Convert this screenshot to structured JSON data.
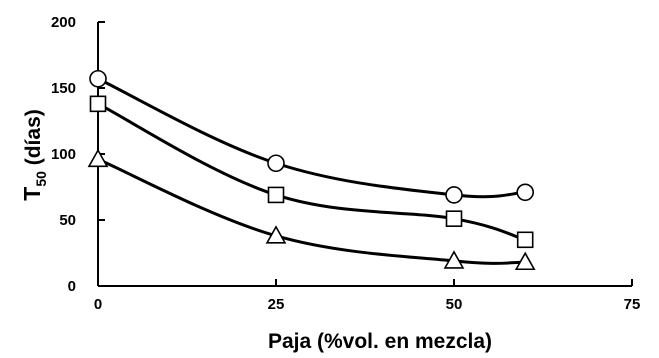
{
  "chart_data": {
    "type": "line",
    "xlabel": "Paja (%vol. en mezcla)",
    "ylabel_main": "T",
    "ylabel_sub": "50",
    "ylabel_rest": " (días)",
    "xlim": [
      0,
      75
    ],
    "ylim": [
      0,
      200
    ],
    "xticks": [
      0,
      25,
      50,
      75
    ],
    "yticks": [
      0,
      50,
      100,
      150,
      200
    ],
    "grid": false,
    "legend": "none",
    "series": [
      {
        "marker": "circle",
        "x": [
          0,
          25,
          50,
          60
        ],
        "y": [
          157,
          93,
          69,
          71
        ]
      },
      {
        "marker": "square",
        "x": [
          0,
          25,
          50,
          60
        ],
        "y": [
          138,
          69,
          51,
          35
        ]
      },
      {
        "marker": "triangle",
        "x": [
          0,
          25,
          50,
          60
        ],
        "y": [
          96,
          38,
          19,
          18
        ]
      }
    ]
  }
}
